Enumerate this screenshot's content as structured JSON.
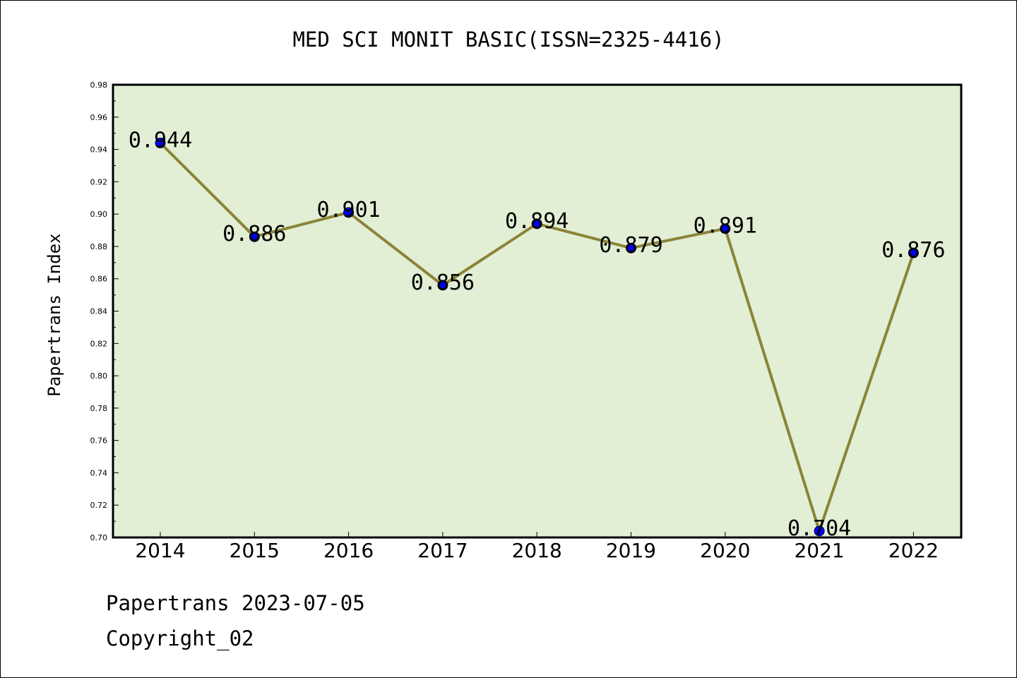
{
  "chart_data": {
    "type": "line",
    "title": "MED SCI MONIT BASIC(ISSN=2325-4416)",
    "xlabel": "",
    "ylabel": "Papertrans Index",
    "categories": [
      "2014",
      "2015",
      "2016",
      "2017",
      "2018",
      "2019",
      "2020",
      "2021",
      "2022"
    ],
    "series": [
      {
        "values": [
          0.944,
          0.886,
          0.901,
          0.856,
          0.894,
          0.879,
          0.891,
          0.704,
          0.876
        ]
      }
    ],
    "data_labels": [
      "0.944",
      "0.886",
      "0.901",
      "0.856",
      "0.894",
      "0.879",
      "0.891",
      "0.704",
      "0.876"
    ],
    "ylim": [
      0.7,
      0.98
    ],
    "yticks": [
      "0.70",
      "0.72",
      "0.74",
      "0.76",
      "0.78",
      "0.80",
      "0.82",
      "0.84",
      "0.86",
      "0.88",
      "0.90",
      "0.92",
      "0.94",
      "0.96",
      "0.98"
    ],
    "grid": false,
    "legend": "none",
    "colors": {
      "plot_bg": "#e2efd5",
      "line": "#8b8437",
      "marker": "#0000ff"
    }
  },
  "footer": {
    "date_line": "Papertrans 2023-07-05",
    "copyright_line": "Copyright_02"
  }
}
